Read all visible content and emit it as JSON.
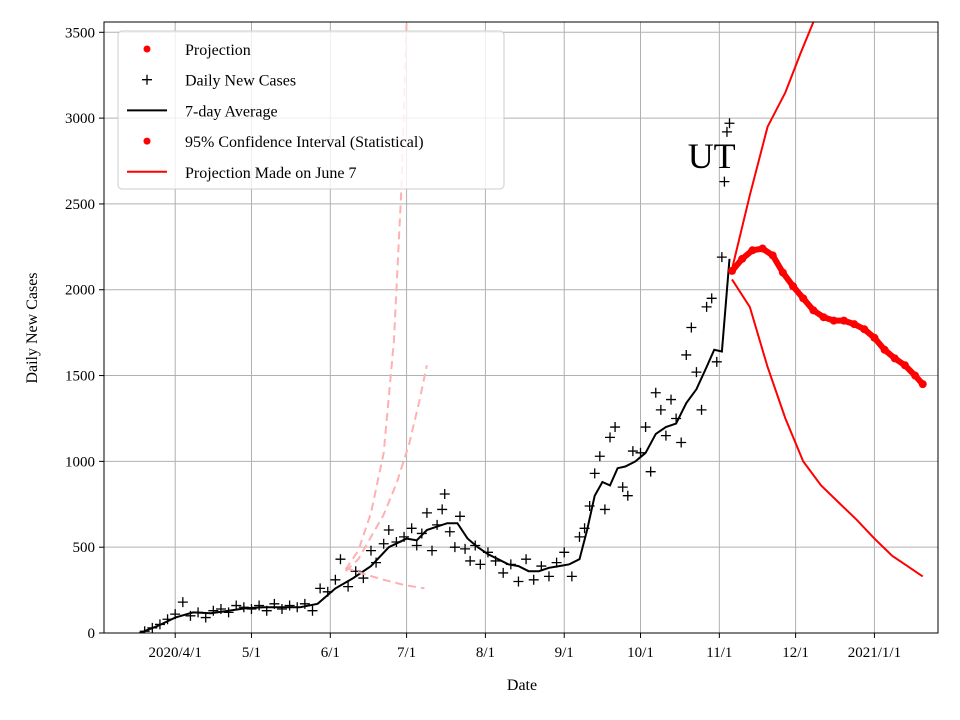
{
  "chart_data": {
    "type": "line",
    "title": "",
    "xlabel": "Date",
    "ylabel": "Daily New Cases",
    "ylim": [
      0,
      3560
    ],
    "xlim": [
      "2020-03-04",
      "2021-01-26"
    ],
    "grid": true,
    "legend_position": "top-left",
    "annotation": "UT",
    "annotation_at": {
      "x": "2020-10-29",
      "y": 2780
    },
    "x_ticks": [
      {
        "date": "2020-04-01",
        "label": "2020/4/1"
      },
      {
        "date": "2020-05-01",
        "label": "5/1"
      },
      {
        "date": "2020-06-01",
        "label": "6/1"
      },
      {
        "date": "2020-07-01",
        "label": "7/1"
      },
      {
        "date": "2020-08-01",
        "label": "8/1"
      },
      {
        "date": "2020-09-01",
        "label": "9/1"
      },
      {
        "date": "2020-10-01",
        "label": "10/1"
      },
      {
        "date": "2020-11-01",
        "label": "11/1"
      },
      {
        "date": "2020-12-01",
        "label": "12/1"
      },
      {
        "date": "2021-01-01",
        "label": "2021/1/1"
      }
    ],
    "y_ticks": [
      0,
      500,
      1000,
      1500,
      2000,
      2500,
      3000,
      3500
    ],
    "legend": [
      {
        "label": "Projection",
        "marker": "dot",
        "color": "#ff0000"
      },
      {
        "label": "Daily New Cases",
        "marker": "plus",
        "color": "#000000"
      },
      {
        "label": "7-day Average",
        "marker": "line",
        "color": "#000000"
      },
      {
        "label": "95% Confidence Interval (Statistical)",
        "marker": "dot",
        "color": "#ff0000"
      },
      {
        "label": "Projection Made on June 7",
        "marker": "line",
        "color": "#ff0000"
      }
    ],
    "series": [
      {
        "name": "Daily New Cases",
        "style": "plus",
        "color": "#000000",
        "points": [
          [
            "2020-03-20",
            10
          ],
          [
            "2020-03-23",
            30
          ],
          [
            "2020-03-26",
            50
          ],
          [
            "2020-03-29",
            80
          ],
          [
            "2020-04-01",
            110
          ],
          [
            "2020-04-04",
            180
          ],
          [
            "2020-04-07",
            100
          ],
          [
            "2020-04-10",
            120
          ],
          [
            "2020-04-13",
            90
          ],
          [
            "2020-04-16",
            130
          ],
          [
            "2020-04-19",
            140
          ],
          [
            "2020-04-22",
            120
          ],
          [
            "2020-04-25",
            160
          ],
          [
            "2020-04-28",
            150
          ],
          [
            "2020-05-01",
            140
          ],
          [
            "2020-05-04",
            160
          ],
          [
            "2020-05-07",
            130
          ],
          [
            "2020-05-10",
            170
          ],
          [
            "2020-05-13",
            140
          ],
          [
            "2020-05-16",
            160
          ],
          [
            "2020-05-19",
            150
          ],
          [
            "2020-05-22",
            170
          ],
          [
            "2020-05-25",
            130
          ],
          [
            "2020-05-28",
            260
          ],
          [
            "2020-05-31",
            240
          ],
          [
            "2020-06-03",
            310
          ],
          [
            "2020-06-05",
            430
          ],
          [
            "2020-06-08",
            270
          ],
          [
            "2020-06-11",
            360
          ],
          [
            "2020-06-14",
            320
          ],
          [
            "2020-06-17",
            480
          ],
          [
            "2020-06-19",
            410
          ],
          [
            "2020-06-22",
            520
          ],
          [
            "2020-06-24",
            600
          ],
          [
            "2020-06-27",
            530
          ],
          [
            "2020-06-30",
            560
          ],
          [
            "2020-07-03",
            610
          ],
          [
            "2020-07-05",
            510
          ],
          [
            "2020-07-07",
            580
          ],
          [
            "2020-07-09",
            700
          ],
          [
            "2020-07-11",
            480
          ],
          [
            "2020-07-13",
            630
          ],
          [
            "2020-07-15",
            720
          ],
          [
            "2020-07-16",
            810
          ],
          [
            "2020-07-18",
            590
          ],
          [
            "2020-07-20",
            500
          ],
          [
            "2020-07-22",
            680
          ],
          [
            "2020-07-24",
            490
          ],
          [
            "2020-07-26",
            420
          ],
          [
            "2020-07-28",
            510
          ],
          [
            "2020-07-30",
            400
          ],
          [
            "2020-08-02",
            470
          ],
          [
            "2020-08-05",
            420
          ],
          [
            "2020-08-08",
            350
          ],
          [
            "2020-08-11",
            400
          ],
          [
            "2020-08-14",
            300
          ],
          [
            "2020-08-17",
            430
          ],
          [
            "2020-08-20",
            310
          ],
          [
            "2020-08-23",
            390
          ],
          [
            "2020-08-26",
            330
          ],
          [
            "2020-08-29",
            410
          ],
          [
            "2020-09-01",
            470
          ],
          [
            "2020-09-04",
            330
          ],
          [
            "2020-09-07",
            560
          ],
          [
            "2020-09-09",
            610
          ],
          [
            "2020-09-11",
            740
          ],
          [
            "2020-09-13",
            930
          ],
          [
            "2020-09-15",
            1030
          ],
          [
            "2020-09-17",
            720
          ],
          [
            "2020-09-19",
            1140
          ],
          [
            "2020-09-21",
            1200
          ],
          [
            "2020-09-24",
            850
          ],
          [
            "2020-09-26",
            800
          ],
          [
            "2020-09-28",
            1060
          ],
          [
            "2020-10-01",
            1050
          ],
          [
            "2020-10-03",
            1200
          ],
          [
            "2020-10-05",
            940
          ],
          [
            "2020-10-07",
            1400
          ],
          [
            "2020-10-09",
            1300
          ],
          [
            "2020-10-11",
            1150
          ],
          [
            "2020-10-13",
            1360
          ],
          [
            "2020-10-15",
            1250
          ],
          [
            "2020-10-17",
            1110
          ],
          [
            "2020-10-19",
            1620
          ],
          [
            "2020-10-21",
            1780
          ],
          [
            "2020-10-23",
            1520
          ],
          [
            "2020-10-25",
            1300
          ],
          [
            "2020-10-27",
            1900
          ],
          [
            "2020-10-29",
            1950
          ],
          [
            "2020-10-31",
            1580
          ],
          [
            "2020-11-02",
            2190
          ],
          [
            "2020-11-03",
            2630
          ],
          [
            "2020-11-04",
            2920
          ],
          [
            "2020-11-05",
            2970
          ]
        ]
      },
      {
        "name": "7-day Average",
        "style": "line",
        "color": "#000000",
        "points": [
          [
            "2020-03-18",
            0
          ],
          [
            "2020-03-25",
            40
          ],
          [
            "2020-04-01",
            90
          ],
          [
            "2020-04-08",
            120
          ],
          [
            "2020-04-15",
            115
          ],
          [
            "2020-04-22",
            130
          ],
          [
            "2020-04-29",
            145
          ],
          [
            "2020-05-06",
            150
          ],
          [
            "2020-05-13",
            150
          ],
          [
            "2020-05-20",
            150
          ],
          [
            "2020-05-27",
            170
          ],
          [
            "2020-06-03",
            260
          ],
          [
            "2020-06-10",
            320
          ],
          [
            "2020-06-17",
            390
          ],
          [
            "2020-06-24",
            500
          ],
          [
            "2020-07-01",
            550
          ],
          [
            "2020-07-05",
            540
          ],
          [
            "2020-07-09",
            600
          ],
          [
            "2020-07-13",
            620
          ],
          [
            "2020-07-17",
            640
          ],
          [
            "2020-07-21",
            640
          ],
          [
            "2020-07-25",
            550
          ],
          [
            "2020-07-29",
            500
          ],
          [
            "2020-08-02",
            460
          ],
          [
            "2020-08-06",
            430
          ],
          [
            "2020-08-10",
            400
          ],
          [
            "2020-08-14",
            390
          ],
          [
            "2020-08-18",
            360
          ],
          [
            "2020-08-22",
            360
          ],
          [
            "2020-08-26",
            380
          ],
          [
            "2020-08-30",
            390
          ],
          [
            "2020-09-03",
            400
          ],
          [
            "2020-09-07",
            430
          ],
          [
            "2020-09-10",
            600
          ],
          [
            "2020-09-13",
            800
          ],
          [
            "2020-09-16",
            880
          ],
          [
            "2020-09-19",
            860
          ],
          [
            "2020-09-22",
            960
          ],
          [
            "2020-09-25",
            970
          ],
          [
            "2020-09-29",
            1000
          ],
          [
            "2020-10-03",
            1050
          ],
          [
            "2020-10-07",
            1160
          ],
          [
            "2020-10-11",
            1200
          ],
          [
            "2020-10-15",
            1220
          ],
          [
            "2020-10-19",
            1340
          ],
          [
            "2020-10-23",
            1420
          ],
          [
            "2020-10-27",
            1550
          ],
          [
            "2020-10-30",
            1650
          ],
          [
            "2020-11-02",
            1640
          ],
          [
            "2020-11-05",
            2180
          ]
        ]
      },
      {
        "name": "Projection",
        "style": "dots",
        "color": "#ff0000",
        "points": [
          [
            "2020-11-06",
            2110
          ],
          [
            "2020-11-10",
            2180
          ],
          [
            "2020-11-14",
            2230
          ],
          [
            "2020-11-18",
            2240
          ],
          [
            "2020-11-22",
            2200
          ],
          [
            "2020-11-26",
            2100
          ],
          [
            "2020-11-30",
            2020
          ],
          [
            "2020-12-04",
            1950
          ],
          [
            "2020-12-08",
            1880
          ],
          [
            "2020-12-12",
            1840
          ],
          [
            "2020-12-16",
            1820
          ],
          [
            "2020-12-20",
            1820
          ],
          [
            "2020-12-24",
            1800
          ],
          [
            "2020-12-28",
            1770
          ],
          [
            "2021-01-01",
            1720
          ],
          [
            "2021-01-05",
            1650
          ],
          [
            "2021-01-09",
            1600
          ],
          [
            "2021-01-13",
            1560
          ],
          [
            "2021-01-17",
            1500
          ],
          [
            "2021-01-20",
            1450
          ]
        ]
      },
      {
        "name": "95% Confidence Interval (Statistical)",
        "style": "line",
        "color": "#ff0000",
        "bands": [
          [
            [
              "2020-11-06",
              2120
            ],
            [
              "2020-11-13",
              2550
            ],
            [
              "2020-11-20",
              2950
            ],
            [
              "2020-11-27",
              3150
            ],
            [
              "2020-12-03",
              3380
            ],
            [
              "2020-12-08",
              3560
            ]
          ],
          [
            [
              "2020-11-06",
              2060
            ],
            [
              "2020-11-13",
              1900
            ],
            [
              "2020-11-20",
              1550
            ],
            [
              "2020-11-27",
              1250
            ],
            [
              "2020-12-04",
              1000
            ],
            [
              "2020-12-11",
              860
            ],
            [
              "2020-12-18",
              760
            ],
            [
              "2020-12-25",
              660
            ],
            [
              "2021-01-01",
              550
            ],
            [
              "2021-01-08",
              450
            ],
            [
              "2021-01-15",
              380
            ],
            [
              "2021-01-20",
              330
            ]
          ]
        ]
      },
      {
        "name": "Projection Made on June 7",
        "style": "dashed",
        "color": "#ffb0b0",
        "bands": [
          [
            [
              "2020-06-07",
              370
            ],
            [
              "2020-06-12",
              480
            ],
            [
              "2020-06-17",
              700
            ],
            [
              "2020-06-22",
              1050
            ],
            [
              "2020-06-26",
              1700
            ],
            [
              "2020-06-29",
              2600
            ],
            [
              "2020-07-01",
              3560
            ]
          ],
          [
            [
              "2020-06-07",
              360
            ],
            [
              "2020-06-12",
              430
            ],
            [
              "2020-06-17",
              560
            ],
            [
              "2020-06-22",
              690
            ],
            [
              "2020-06-27",
              870
            ],
            [
              "2020-07-02",
              1100
            ],
            [
              "2020-07-06",
              1350
            ],
            [
              "2020-07-09",
              1560
            ]
          ],
          [
            [
              "2020-06-07",
              380
            ],
            [
              "2020-06-15",
              340
            ],
            [
              "2020-06-22",
              310
            ],
            [
              "2020-06-30",
              280
            ],
            [
              "2020-07-08",
              260
            ]
          ]
        ]
      }
    ]
  }
}
